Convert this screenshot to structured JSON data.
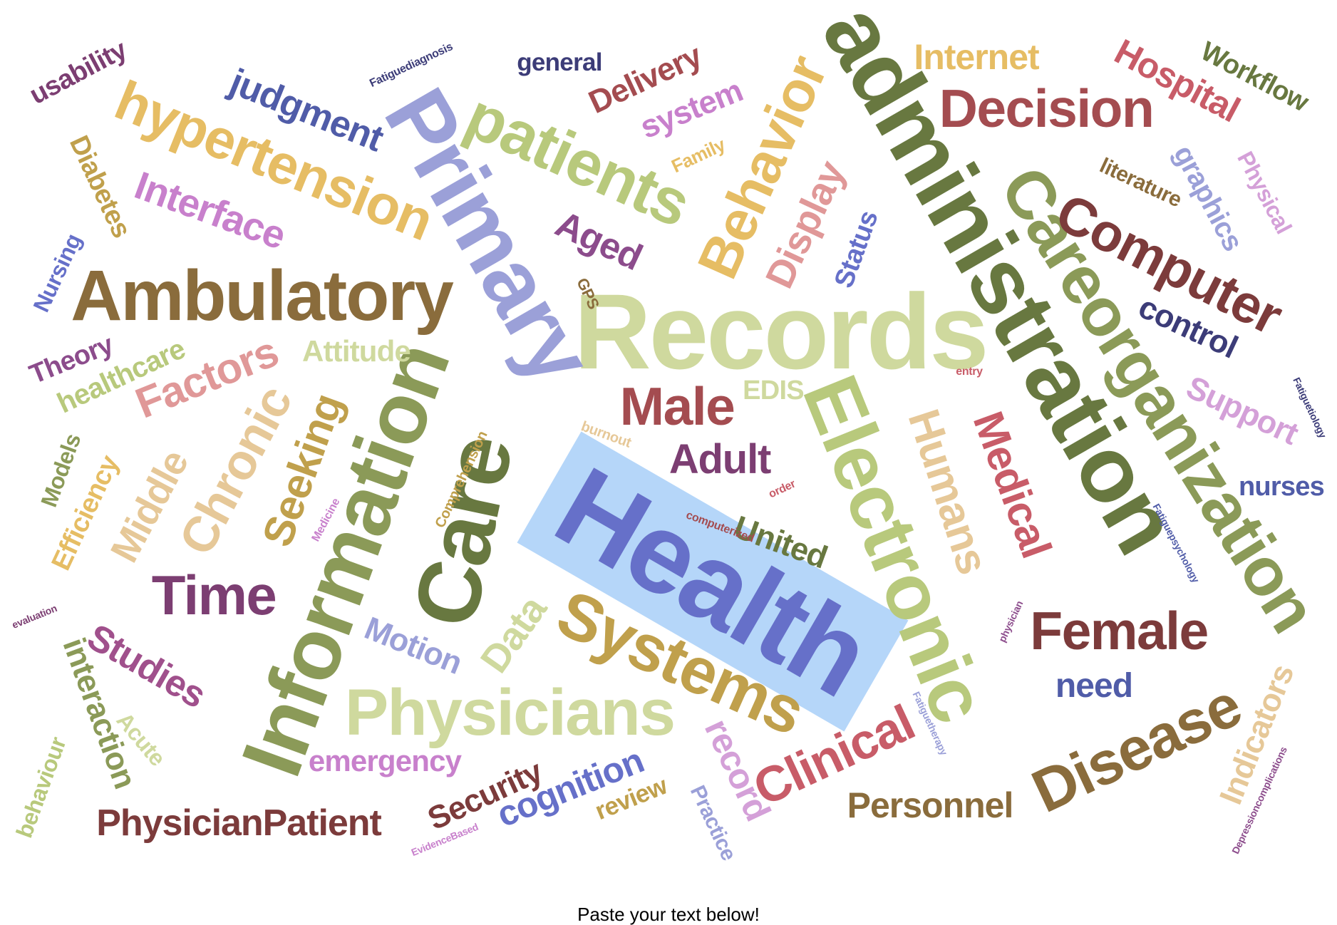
{
  "prompt": "Paste your text below!",
  "selection": {
    "word": "Health",
    "color": "#96c4f6"
  },
  "words": [
    {
      "text": "Health",
      "color": "#6670c9"
    },
    {
      "text": "Records",
      "color": "#cfd99e"
    },
    {
      "text": "administration",
      "color": "#687840"
    },
    {
      "text": "Primary",
      "color": "#9ba0d8"
    },
    {
      "text": "Information",
      "color": "#8b9a58"
    },
    {
      "text": "Care",
      "color": "#687840"
    },
    {
      "text": "Electronic",
      "color": "#b8c97c"
    },
    {
      "text": "Careorganization",
      "color": "#8b9a58"
    },
    {
      "text": "Ambulatory",
      "color": "#8a6c3c"
    },
    {
      "text": "Systems",
      "color": "#c0a04c"
    },
    {
      "text": "Physicians",
      "color": "#cfd99e"
    },
    {
      "text": "hypertension",
      "color": "#e6bd64"
    },
    {
      "text": "patients",
      "color": "#b8c97c"
    },
    {
      "text": "Behavior",
      "color": "#e6bd64"
    },
    {
      "text": "Disease",
      "color": "#8a6c3c"
    },
    {
      "text": "Computer",
      "color": "#7c3b3b"
    },
    {
      "text": "Decision",
      "color": "#a44c50"
    },
    {
      "text": "Female",
      "color": "#7c3b3b"
    },
    {
      "text": "Humans",
      "color": "#e6c898"
    },
    {
      "text": "Medical",
      "color": "#c85c68"
    },
    {
      "text": "Male",
      "color": "#a44c50"
    },
    {
      "text": "Time",
      "color": "#7c3e72"
    },
    {
      "text": "Clinical",
      "color": "#c85c68"
    },
    {
      "text": "Chronic",
      "color": "#e6c898"
    },
    {
      "text": "Seeking",
      "color": "#c0a04c"
    },
    {
      "text": "Middle",
      "color": "#e6c898"
    },
    {
      "text": "Factors",
      "color": "#e09898"
    },
    {
      "text": "Interface",
      "color": "#c880cc"
    },
    {
      "text": "judgment",
      "color": "#505ca8"
    },
    {
      "text": "Studies",
      "color": "#a0508c"
    },
    {
      "text": "interaction",
      "color": "#8b9a58"
    },
    {
      "text": "Display",
      "color": "#e09898"
    },
    {
      "text": "Aged",
      "color": "#8c4c8c"
    },
    {
      "text": "Adult",
      "color": "#7c3e72"
    },
    {
      "text": "United",
      "color": "#687840"
    },
    {
      "text": "record",
      "color": "#d4a0d8"
    },
    {
      "text": "PhysicianPatient",
      "color": "#7c3b3b"
    },
    {
      "text": "Personnel",
      "color": "#8a6c3c"
    },
    {
      "text": "Security",
      "color": "#7c3b3b"
    },
    {
      "text": "cognition",
      "color": "#6670c9"
    },
    {
      "text": "emergency",
      "color": "#c880cc"
    },
    {
      "text": "Motion",
      "color": "#9ba0d8"
    },
    {
      "text": "Data",
      "color": "#cfd99e"
    },
    {
      "text": "Attitude",
      "color": "#cfd99e"
    },
    {
      "text": "healthcare",
      "color": "#b8c97c"
    },
    {
      "text": "Theory",
      "color": "#8c4c8c"
    },
    {
      "text": "Efficiency",
      "color": "#e6bd64"
    },
    {
      "text": "Models",
      "color": "#8b9a58"
    },
    {
      "text": "Diabetes",
      "color": "#c0a04c"
    },
    {
      "text": "usability",
      "color": "#7c3e72"
    },
    {
      "text": "Nursing",
      "color": "#6670c9"
    },
    {
      "text": "Internet",
      "color": "#e6bd64"
    },
    {
      "text": "Hospital",
      "color": "#c85c68"
    },
    {
      "text": "Workflow",
      "color": "#687840"
    },
    {
      "text": "general",
      "color": "#3c3c78"
    },
    {
      "text": "Delivery",
      "color": "#a44c50"
    },
    {
      "text": "system",
      "color": "#c880cc"
    },
    {
      "text": "control",
      "color": "#3c3c78"
    },
    {
      "text": "Support",
      "color": "#d4a0d8"
    },
    {
      "text": "nurses",
      "color": "#505ca8"
    },
    {
      "text": "need",
      "color": "#505ca8"
    },
    {
      "text": "Indicators",
      "color": "#e6c898"
    },
    {
      "text": "Status",
      "color": "#6670c9"
    },
    {
      "text": "graphics",
      "color": "#9ba0d8"
    },
    {
      "text": "Physical",
      "color": "#d4a0d8"
    },
    {
      "text": "literature",
      "color": "#8a6c3c"
    },
    {
      "text": "Acute",
      "color": "#cfd99e"
    },
    {
      "text": "behaviour",
      "color": "#b8c97c"
    },
    {
      "text": "review",
      "color": "#c0a04c"
    },
    {
      "text": "Practice",
      "color": "#9ba0d8"
    },
    {
      "text": "EDIS",
      "color": "#cfd99e"
    },
    {
      "text": "Family",
      "color": "#e6bd64"
    },
    {
      "text": "GPS",
      "color": "#8a6c3c"
    },
    {
      "text": "Fatiguediagnosis",
      "color": "#3c3c78"
    },
    {
      "text": "Fatiguetiology",
      "color": "#3c3c78"
    },
    {
      "text": "Fatiguepsychology",
      "color": "#505ca8"
    },
    {
      "text": "Fatiguetherapy",
      "color": "#9ba0d8"
    },
    {
      "text": "Depressioncomplications",
      "color": "#8c4c8c"
    },
    {
      "text": "Comprehension",
      "color": "#c0a04c"
    },
    {
      "text": "Medicine",
      "color": "#c880cc"
    },
    {
      "text": "computerized",
      "color": "#a44c50"
    },
    {
      "text": "order",
      "color": "#c85c68"
    },
    {
      "text": "entry",
      "color": "#c85c68"
    },
    {
      "text": "burnout",
      "color": "#e6c898"
    },
    {
      "text": "physician",
      "color": "#8c4c8c"
    },
    {
      "text": "evaluation",
      "color": "#7c3e72"
    },
    {
      "text": "EvidenceBased",
      "color": "#c880cc"
    }
  ]
}
